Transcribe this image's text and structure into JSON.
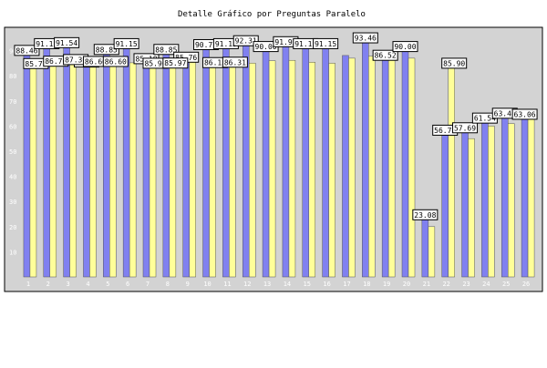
{
  "chart_data": {
    "type": "bar",
    "title": "Detalle Gráfico por Preguntas Paralelo",
    "categories": [
      "1",
      "2",
      "3",
      "4",
      "5",
      "6",
      "7",
      "8",
      "9",
      "10",
      "11",
      "12",
      "13",
      "14",
      "15",
      "16",
      "17",
      "18",
      "19",
      "20",
      "21",
      "22",
      "23",
      "24",
      "25",
      "26"
    ],
    "ylim": [
      0,
      100
    ],
    "yticks": [
      10,
      20,
      30,
      40,
      50,
      60,
      70,
      80,
      90
    ],
    "grid": false,
    "legend": "none",
    "series": [
      {
        "color": "#8080f0",
        "values": [
          88.46,
          91.15,
          91.54,
          83.85,
          88.85,
          91.15,
          85.18,
          88.85,
          85.76,
          90.77,
          91.15,
          92.31,
          90.0,
          91.92,
          91.15,
          91.15,
          88.08,
          93.46,
          86.52,
          90.0,
          23.08,
          56.73,
          57.69,
          61.54,
          63.46,
          63.06
        ],
        "labels": [
          "88.46",
          "91.15",
          "91.54",
          "83.85",
          "88.85",
          "91.15",
          "85.18",
          "88.85",
          "85.76",
          "90.77",
          "91.15",
          "92.31",
          "90.00",
          "91.92",
          "91.15",
          "91.15",
          "",
          "93.46",
          "86.52",
          "90.00",
          "23.08",
          "56.73",
          "57.69",
          "61.54",
          "63.46",
          "63.06"
        ]
      },
      {
        "color": "#ffff99",
        "values": [
          85.77,
          86.7,
          87.36,
          86.6,
          86.6,
          85.18,
          85.9,
          85.97,
          85.76,
          86.15,
          86.31,
          85.04,
          86.0,
          86.15,
          85.38,
          85.0,
          87.0,
          87.82,
          86.52,
          87.0,
          20.0,
          85.9,
          55.0,
          60.0,
          61.0,
          63.66
        ],
        "labels": [
          "85.77",
          "86.70",
          "87.36",
          "86.60",
          "86.60",
          "",
          "85.90",
          "85.97",
          "",
          "86.15",
          "86.31",
          "",
          "",
          "",
          "",
          "",
          "",
          "",
          "",
          "",
          "",
          "85.90",
          "",
          "",
          "",
          ""
        ]
      }
    ]
  }
}
